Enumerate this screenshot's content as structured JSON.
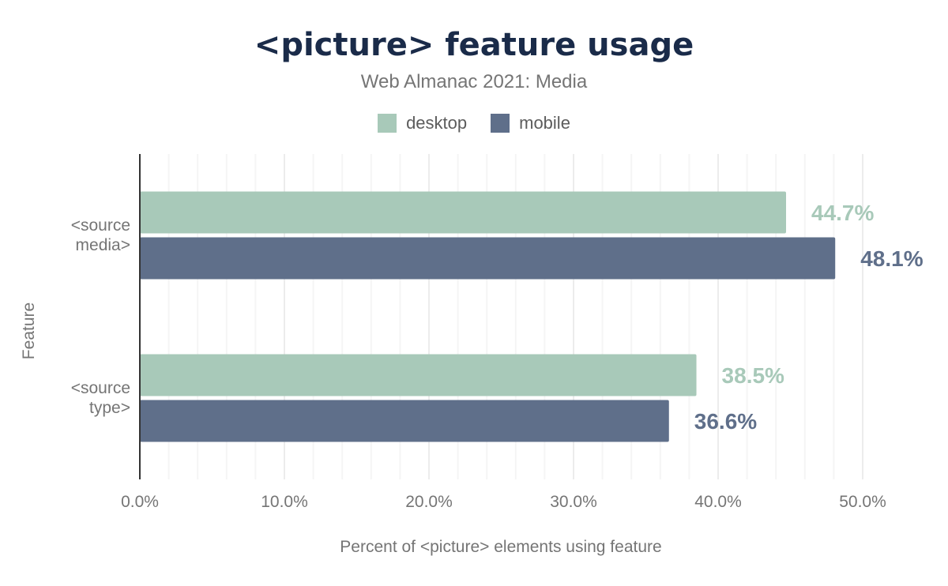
{
  "chart_data": {
    "type": "bar",
    "orientation": "horizontal",
    "title": "<picture> feature usage",
    "subtitle": "Web Almanac 2021: Media",
    "xlabel": "Percent of <picture> elements using feature",
    "ylabel": "Feature",
    "categories": [
      [
        "<source",
        "media>"
      ],
      [
        "<source",
        "type>"
      ]
    ],
    "series": [
      {
        "name": "desktop",
        "color": "#a8c9b9",
        "values": [
          44.7,
          38.5
        ],
        "labels": [
          "44.7%",
          "38.5%"
        ]
      },
      {
        "name": "mobile",
        "color": "#5f6f8a",
        "values": [
          48.1,
          36.6
        ],
        "labels": [
          "48.1%",
          "36.6%"
        ]
      }
    ],
    "xlim": [
      0,
      50
    ],
    "xticks": [
      "0.0%",
      "10.0%",
      "20.0%",
      "30.0%",
      "40.0%",
      "50.0%"
    ],
    "grid": true,
    "legend_placement": "top-center"
  }
}
